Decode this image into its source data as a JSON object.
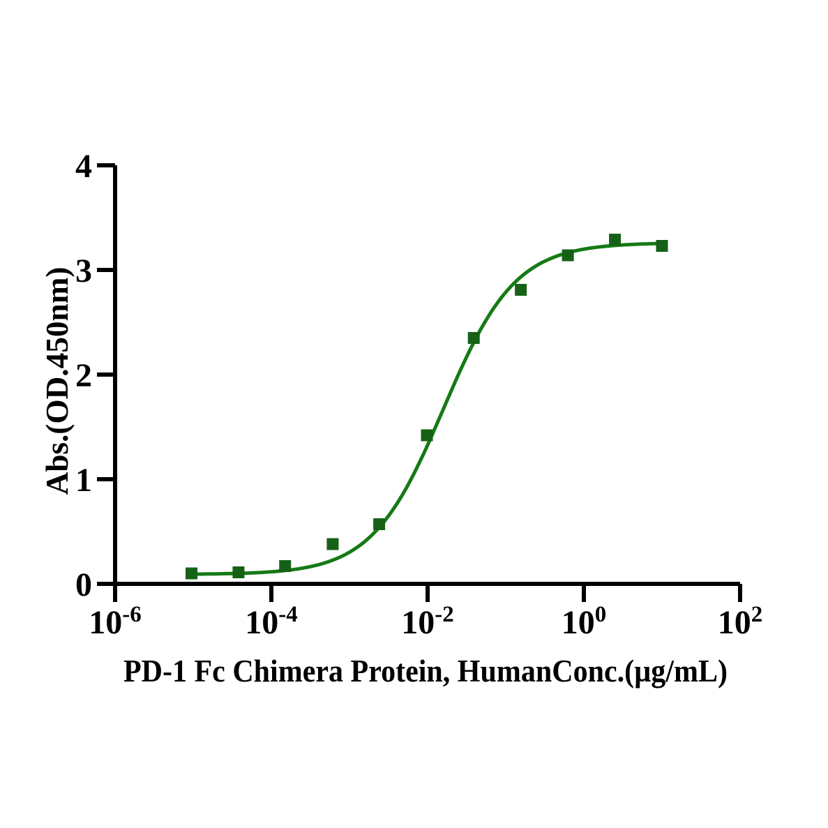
{
  "page": {
    "background_color": "#ffffff"
  },
  "chart_data": {
    "type": "scatter",
    "title": "",
    "xlabel": "PD-1 Fc Chimera Protein, HumanConc.(µg/mL)",
    "ylabel": "Abs.(OD.450nm)",
    "x_scale": "log10",
    "xlim_log10": [
      -6,
      2
    ],
    "ylim": [
      0,
      4
    ],
    "grid": false,
    "legend": "none",
    "axis_color": "#000000",
    "x_ticks": [
      {
        "base": "10",
        "exponent": "-6",
        "log10_value": -6
      },
      {
        "base": "10",
        "exponent": "-4",
        "log10_value": -4
      },
      {
        "base": "10",
        "exponent": "-2",
        "log10_value": -2
      },
      {
        "base": "10",
        "exponent": "0",
        "log10_value": 0
      },
      {
        "base": "10",
        "exponent": "2",
        "log10_value": 2
      }
    ],
    "y_ticks": [
      {
        "label": "0",
        "value": 0
      },
      {
        "label": "1",
        "value": 1
      },
      {
        "label": "2",
        "value": 2
      },
      {
        "label": "3",
        "value": 3
      },
      {
        "label": "4",
        "value": 4
      }
    ],
    "series": [
      {
        "marker": "square",
        "marker_color": "#166116",
        "line_color": "#157a15",
        "x_ug_per_ml": [
          9.5e-06,
          3.8e-05,
          0.00015,
          0.00061,
          0.0024,
          0.0098,
          0.039,
          0.156,
          0.625,
          2.5,
          10
        ],
        "y_od450": [
          0.1,
          0.11,
          0.17,
          0.38,
          0.57,
          1.42,
          2.35,
          2.81,
          3.14,
          3.29,
          3.23
        ]
      }
    ],
    "fit_curve": {
      "model": "4PL",
      "bottom": 0.09,
      "top": 3.26,
      "ec50_ug_ml": 0.016,
      "hill": 0.95,
      "x_start_log10": -5.02,
      "x_end_log10": 1.0
    }
  }
}
